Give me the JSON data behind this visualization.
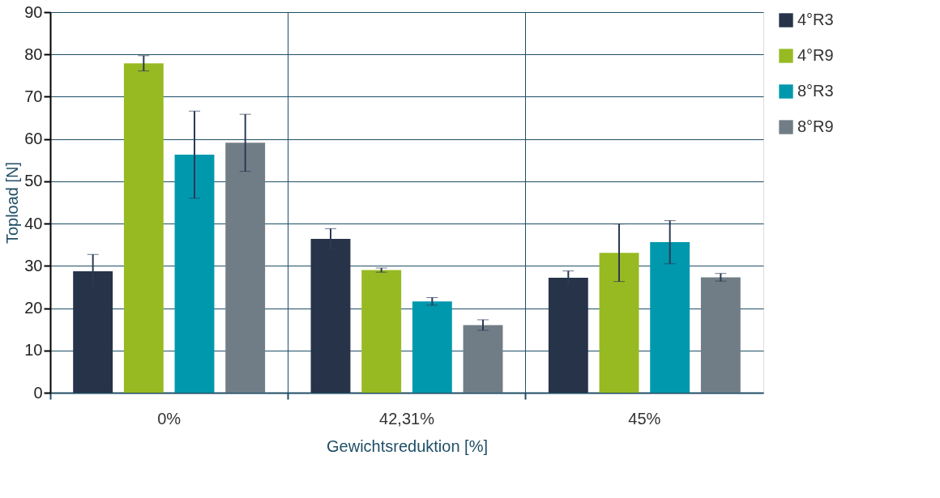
{
  "chart_data": {
    "type": "bar",
    "xlabel": "Gewichtsreduktion [%]",
    "ylabel": "Topload  [N]",
    "categories": [
      "0%",
      "42,31%",
      "45%"
    ],
    "series": [
      {
        "name": "4°R3",
        "color": "#263349",
        "values": [
          28.7,
          36.4,
          27.2
        ],
        "errors": [
          4.0,
          2.4,
          1.6
        ]
      },
      {
        "name": "4°R9",
        "color": "#97ba22",
        "values": [
          77.9,
          29.0,
          33.1
        ],
        "errors": [
          1.8,
          0.5,
          6.8
        ]
      },
      {
        "name": "8°R3",
        "color": "#0098ad",
        "values": [
          56.3,
          21.6,
          35.6
        ],
        "errors": [
          10.3,
          0.9,
          5.1
        ]
      },
      {
        "name": "8°R9",
        "color": "#717d86",
        "values": [
          59.1,
          16.0,
          27.3
        ],
        "errors": [
          6.75,
          1.25,
          0.9
        ]
      }
    ],
    "ylim": [
      0,
      90
    ],
    "yticks": [
      0,
      10,
      20,
      30,
      40,
      50,
      60,
      70,
      80,
      90
    ],
    "grid": true,
    "legend": "right"
  }
}
